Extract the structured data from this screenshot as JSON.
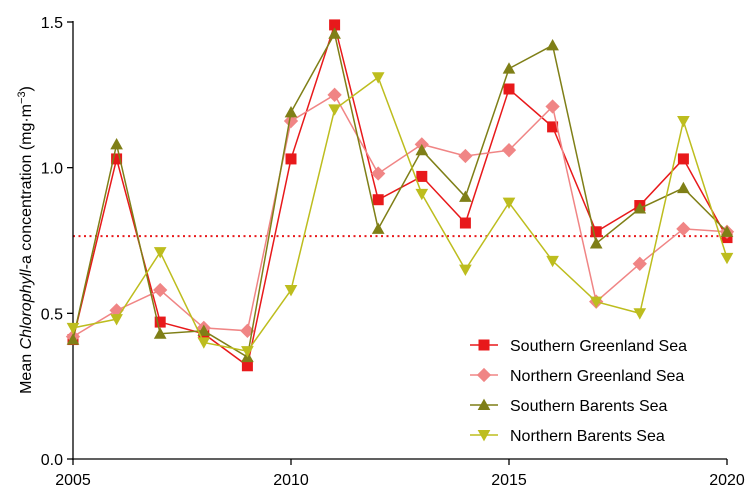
{
  "chart_data": {
    "type": "line",
    "ylabel_parts": [
      {
        "text": "Mean ",
        "italic": false
      },
      {
        "text": "Chlorophyll",
        "italic": true
      },
      {
        "text": "-a concentration (mg·m",
        "italic": false
      },
      {
        "text": "−3",
        "italic": false,
        "superscript": true
      },
      {
        "text": ")",
        "italic": false
      }
    ],
    "xlim": [
      2005,
      2020
    ],
    "ylim": [
      0.0,
      1.5
    ],
    "x_ticks": [
      2005,
      2010,
      2015,
      2020
    ],
    "x_tick_labels": [
      "2005",
      "2010",
      "2015",
      "2020"
    ],
    "y_ticks": [
      0.0,
      0.5,
      1.0,
      1.5
    ],
    "y_tick_labels": [
      "0.0",
      "0.5",
      "1.0",
      "1.5"
    ],
    "reference_line": {
      "y": 0.765,
      "color": "#e8191b",
      "style": "dotted"
    },
    "legend_position": "bottom-right",
    "x": [
      2005,
      2006,
      2007,
      2008,
      2009,
      2010,
      2011,
      2012,
      2013,
      2014,
      2015,
      2016,
      2017,
      2018,
      2019,
      2020
    ],
    "series": [
      {
        "name": "Southern Greenland Sea",
        "color": "#e8191b",
        "marker": "square",
        "values": [
          0.41,
          1.03,
          0.47,
          0.43,
          0.32,
          1.03,
          1.49,
          0.89,
          0.97,
          0.81,
          1.27,
          1.14,
          0.78,
          0.87,
          1.03,
          0.76
        ]
      },
      {
        "name": "Northern Greenland Sea",
        "color": "#f08585",
        "marker": "diamond",
        "values": [
          0.42,
          0.51,
          0.58,
          0.45,
          0.44,
          1.16,
          1.25,
          0.98,
          1.08,
          1.04,
          1.06,
          1.21,
          0.54,
          0.67,
          0.79,
          0.78
        ]
      },
      {
        "name": "Southern Barents Sea",
        "color": "#7f7f17",
        "marker": "triangle-up",
        "values": [
          0.41,
          1.08,
          0.43,
          0.44,
          0.35,
          1.19,
          1.46,
          0.79,
          1.06,
          0.9,
          1.34,
          1.42,
          0.74,
          0.86,
          0.93,
          0.78
        ]
      },
      {
        "name": "Northern Barents Sea",
        "color": "#bdbd1e",
        "marker": "triangle-down",
        "values": [
          0.45,
          0.48,
          0.71,
          0.4,
          0.37,
          0.58,
          1.2,
          1.31,
          0.91,
          0.65,
          0.88,
          0.68,
          0.54,
          0.5,
          1.16,
          0.69
        ]
      }
    ]
  }
}
